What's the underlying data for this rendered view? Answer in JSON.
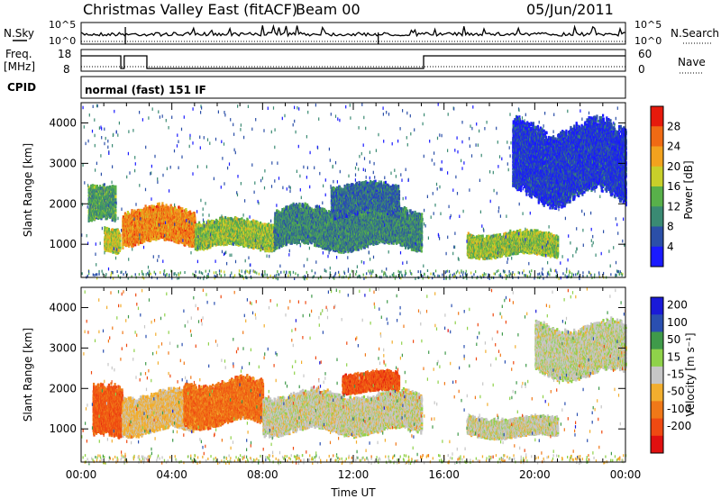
{
  "header": {
    "title": "Christmas Valley East (fitACF)",
    "beam": "Beam 00",
    "date": "05/Jun/2011"
  },
  "strips": {
    "nsky_label": "N.Sky",
    "nsky_top": "10^5",
    "nsky_bottom": "10^0",
    "nsearch_label": "N.Search",
    "nsearch_top": "10^5",
    "nsearch_bottom": "10^0",
    "freq_label_1": "Freq.",
    "freq_label_2": "[MHz]",
    "freq_top": "18",
    "freq_bottom": "8",
    "nave_label": "Nave",
    "nave_top": "60",
    "nave_bottom": "0",
    "cpid_label": "CPID",
    "cpid_text": "normal (fast) 151 IF"
  },
  "colors": {
    "power": [
      "#1a1aff",
      "#2b4fa8",
      "#3a8a73",
      "#58b04a",
      "#c8cf2a",
      "#f2a21e",
      "#f06a14",
      "#e61a0c"
    ],
    "velocity": [
      "#1a1ad8",
      "#2a4fb0",
      "#3f9a4a",
      "#8fd24a",
      "#c6c6c6",
      "#f2ae2e",
      "#f07818",
      "#ef4a12",
      "#e01010"
    ]
  },
  "chart_data": [
    {
      "type": "heatmap",
      "name": "power",
      "xlabel": "",
      "ylabel": "Slant Range [km]",
      "xlim": [
        "00:00",
        "24:00"
      ],
      "ylim": [
        180,
        4500
      ],
      "yticks": [
        1000,
        2000,
        3000,
        4000
      ],
      "colorbar": {
        "label": "Power [dB]",
        "ticks": [
          4,
          8,
          12,
          16,
          20,
          24,
          28
        ],
        "range": [
          0,
          32
        ]
      },
      "regions": [
        {
          "t0": 0.3,
          "t1": 1.5,
          "r0": 1500,
          "r1": 2400,
          "level": 12
        },
        {
          "t0": 1.0,
          "t1": 1.7,
          "r0": 800,
          "r1": 1400,
          "level": 18
        },
        {
          "t0": 1.8,
          "t1": 5.0,
          "r0": 1000,
          "r1": 1900,
          "level": 24
        },
        {
          "t0": 5.0,
          "t1": 8.5,
          "r0": 900,
          "r1": 1600,
          "level": 16
        },
        {
          "t0": 8.5,
          "t1": 15.0,
          "r0": 900,
          "r1": 1900,
          "level": 10
        },
        {
          "t0": 11.0,
          "t1": 14.0,
          "r0": 1700,
          "r1": 2500,
          "level": 8
        },
        {
          "t0": 17.0,
          "t1": 21.0,
          "r0": 700,
          "r1": 1300,
          "level": 16
        },
        {
          "t0": 19.0,
          "t1": 24.0,
          "r0": 2100,
          "r1": 4000,
          "level": 4
        }
      ]
    },
    {
      "type": "heatmap",
      "name": "velocity",
      "xlabel": "Time UT",
      "ylabel": "Slant Range [km]",
      "xlim": [
        "00:00",
        "24:00"
      ],
      "ylim": [
        180,
        4500
      ],
      "yticks": [
        1000,
        2000,
        3000,
        4000
      ],
      "xticks": [
        "00:00",
        "04:00",
        "08:00",
        "12:00",
        "16:00",
        "20:00",
        "00:00"
      ],
      "colorbar": {
        "label": "Velocity [m s⁻¹]",
        "ticks": [
          "200",
          "100",
          "50",
          "15",
          "-15",
          "-50",
          "-100",
          "-200"
        ],
        "range": [
          -250,
          250
        ]
      },
      "regions": [
        {
          "t0": 0.5,
          "t1": 1.8,
          "r0": 700,
          "r1": 2000,
          "level": -150
        },
        {
          "t0": 1.8,
          "t1": 5.0,
          "r0": 900,
          "r1": 1900,
          "level": -40
        },
        {
          "t0": 4.5,
          "t1": 8.0,
          "r0": 1100,
          "r1": 2200,
          "level": -120
        },
        {
          "t0": 8.0,
          "t1": 15.0,
          "r0": 900,
          "r1": 1900,
          "level": 0
        },
        {
          "t0": 11.5,
          "t1": 14.0,
          "r0": 1900,
          "r1": 2400,
          "level": -160
        },
        {
          "t0": 17.0,
          "t1": 21.0,
          "r0": 800,
          "r1": 1300,
          "level": 0
        },
        {
          "t0": 20.0,
          "t1": 24.0,
          "r0": 2300,
          "r1": 3600,
          "level": 5
        }
      ]
    }
  ]
}
